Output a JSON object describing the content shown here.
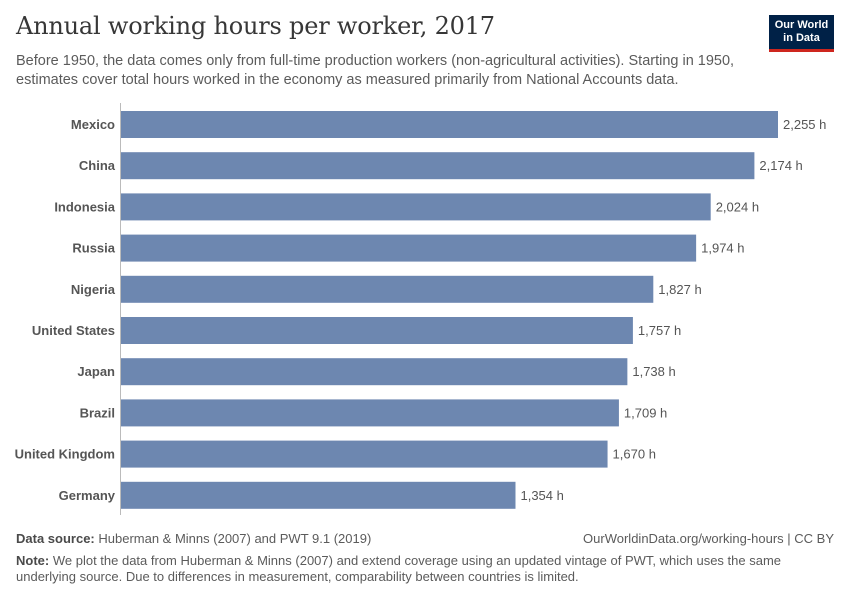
{
  "header": {
    "title": "Annual working hours per worker, 2017",
    "subtitle": "Before 1950, the data comes only from full-time production workers (non-agricultural activities). Starting in 1950, estimates cover total hours worked in the economy as measured primarily from National Accounts data.",
    "logo_text": "Our World in Data"
  },
  "chart_data": {
    "type": "bar",
    "orientation": "horizontal",
    "categories": [
      "Mexico",
      "China",
      "Indonesia",
      "Russia",
      "Nigeria",
      "United States",
      "Japan",
      "Brazil",
      "United Kingdom",
      "Germany"
    ],
    "values": [
      2255,
      2174,
      2024,
      1974,
      1827,
      1757,
      1738,
      1709,
      1670,
      1354
    ],
    "value_labels": [
      "2,255 h",
      "2,174 h",
      "2,024 h",
      "1,974 h",
      "1,827 h",
      "1,757 h",
      "1,738 h",
      "1,709 h",
      "1,670 h",
      "1,354 h"
    ],
    "xlim": [
      0,
      2255
    ],
    "bar_color": "#6d87b0"
  },
  "footer": {
    "source_label": "Data source:",
    "source_text": "Huberman & Minns (2007) and PWT 9.1 (2019)",
    "credit": "OurWorldinData.org/working-hours | CC BY",
    "note_label": "Note:",
    "note_text": "We plot the data from Huberman & Minns (2007) and extend coverage using an updated vintage of PWT, which uses the same underlying source. Due to differences in measurement, comparability between countries is limited."
  }
}
